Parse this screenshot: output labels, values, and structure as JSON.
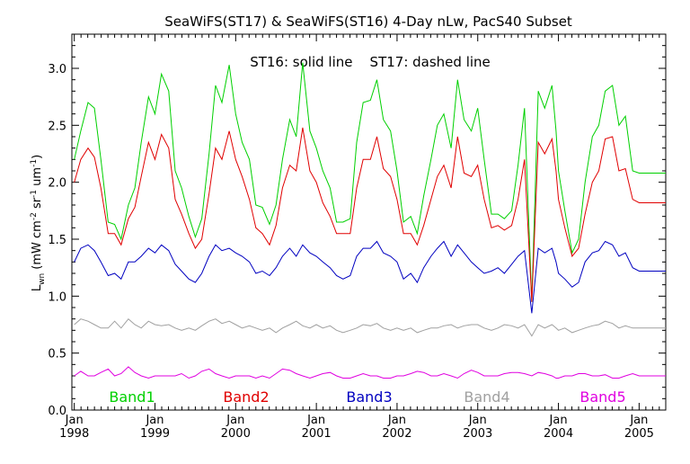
{
  "chart_data": {
    "type": "line",
    "title": "SeaWiFS(ST17) & SeaWiFS(ST16) 4-Day nLw, PacS40 Subset",
    "annotation": "ST16: solid line    ST17: dashed line",
    "ylabel_main": "L",
    "ylabel_sub": "wn",
    "ylabel_rest": " (mW cm",
    "ylabel_exp1": "-2",
    "ylabel_mid": " sr",
    "ylabel_exp2": "-1",
    "ylabel_um": " um",
    "ylabel_exp3": "-1",
    "ylabel_close": ")",
    "ylim": [
      0.0,
      3.3
    ],
    "yticks": [
      0.0,
      0.5,
      1.0,
      1.5,
      2.0,
      2.5,
      3.0
    ],
    "ytick_labels": [
      "0.0",
      "0.5",
      "1.0",
      "1.5",
      "2.0",
      "2.5",
      "3.0"
    ],
    "xlim": [
      1997.97,
      2005.33
    ],
    "xticks": [
      1998,
      1999,
      2000,
      2001,
      2002,
      2003,
      2004,
      2005
    ],
    "xtick_month_label": "Jan",
    "xtick_year_labels": [
      "1998",
      "1999",
      "2000",
      "2001",
      "2002",
      "2003",
      "2004",
      "2005"
    ],
    "grid": false,
    "legend_placement": "bottom",
    "series": [
      {
        "name": "Band1",
        "color": "#00d000",
        "x": [
          1998.0,
          1998.08,
          1998.17,
          1998.25,
          1998.33,
          1998.42,
          1998.5,
          1998.58,
          1998.67,
          1998.75,
          1998.83,
          1998.92,
          1999.0,
          1999.08,
          1999.17,
          1999.25,
          1999.33,
          1999.42,
          1999.5,
          1999.58,
          1999.67,
          1999.75,
          1999.83,
          1999.92,
          2000.0,
          2000.08,
          2000.17,
          2000.25,
          2000.33,
          2000.42,
          2000.5,
          2000.58,
          2000.67,
          2000.75,
          2000.83,
          2000.92,
          2001.0,
          2001.08,
          2001.17,
          2001.25,
          2001.33,
          2001.42,
          2001.5,
          2001.58,
          2001.67,
          2001.75,
          2001.83,
          2001.92,
          2002.0,
          2002.08,
          2002.17,
          2002.25,
          2002.33,
          2002.42,
          2002.5,
          2002.58,
          2002.67,
          2002.75,
          2002.83,
          2002.92,
          2003.0,
          2003.08,
          2003.17,
          2003.25,
          2003.33,
          2003.42,
          2003.5,
          2003.58,
          2003.67,
          2003.75,
          2003.83,
          2003.92,
          2003.97,
          2004.0,
          2004.08,
          2004.17,
          2004.25,
          2004.33,
          2004.42,
          2004.5,
          2004.58,
          2004.67,
          2004.75,
          2004.83,
          2004.92,
          2005.0,
          2005.08,
          2005.17,
          2005.25,
          2005.33
        ],
        "y": [
          2.2,
          2.45,
          2.7,
          2.65,
          2.2,
          1.65,
          1.63,
          1.5,
          1.8,
          1.95,
          2.35,
          2.75,
          2.6,
          2.95,
          2.8,
          2.1,
          1.95,
          1.7,
          1.52,
          1.68,
          2.25,
          2.85,
          2.7,
          3.03,
          2.6,
          2.35,
          2.2,
          1.8,
          1.78,
          1.63,
          1.8,
          2.2,
          2.55,
          2.4,
          3.05,
          2.45,
          2.3,
          2.1,
          1.95,
          1.65,
          1.65,
          1.68,
          2.35,
          2.7,
          2.72,
          2.9,
          2.55,
          2.45,
          2.1,
          1.65,
          1.7,
          1.55,
          1.88,
          2.2,
          2.5,
          2.6,
          2.3,
          2.9,
          2.55,
          2.45,
          2.65,
          2.2,
          1.72,
          1.72,
          1.68,
          1.75,
          2.15,
          2.65,
          0.95,
          2.8,
          2.65,
          2.85,
          2.45,
          2.1,
          1.75,
          1.38,
          1.5,
          2.0,
          2.4,
          2.5,
          2.8,
          2.85,
          2.5,
          2.58,
          2.1,
          2.08,
          2.08,
          2.08,
          2.08,
          2.08
        ]
      },
      {
        "name": "Band2",
        "color": "#e00000",
        "x": [
          1998.0,
          1998.08,
          1998.17,
          1998.25,
          1998.33,
          1998.42,
          1998.5,
          1998.58,
          1998.67,
          1998.75,
          1998.83,
          1998.92,
          1999.0,
          1999.08,
          1999.17,
          1999.25,
          1999.33,
          1999.42,
          1999.5,
          1999.58,
          1999.67,
          1999.75,
          1999.83,
          1999.92,
          2000.0,
          2000.08,
          2000.17,
          2000.25,
          2000.33,
          2000.42,
          2000.5,
          2000.58,
          2000.67,
          2000.75,
          2000.83,
          2000.92,
          2001.0,
          2001.08,
          2001.17,
          2001.25,
          2001.33,
          2001.42,
          2001.5,
          2001.58,
          2001.67,
          2001.75,
          2001.83,
          2001.92,
          2002.0,
          2002.08,
          2002.17,
          2002.25,
          2002.33,
          2002.42,
          2002.5,
          2002.58,
          2002.67,
          2002.75,
          2002.83,
          2002.92,
          2003.0,
          2003.08,
          2003.17,
          2003.25,
          2003.33,
          2003.42,
          2003.5,
          2003.58,
          2003.67,
          2003.75,
          2003.83,
          2003.92,
          2003.97,
          2004.0,
          2004.08,
          2004.17,
          2004.25,
          2004.33,
          2004.42,
          2004.5,
          2004.58,
          2004.67,
          2004.75,
          2004.83,
          2004.92,
          2005.0,
          2005.08,
          2005.17,
          2005.25,
          2005.33
        ],
        "y": [
          2.0,
          2.2,
          2.3,
          2.22,
          1.95,
          1.55,
          1.55,
          1.45,
          1.68,
          1.78,
          2.05,
          2.35,
          2.2,
          2.42,
          2.3,
          1.85,
          1.72,
          1.55,
          1.42,
          1.5,
          1.9,
          2.3,
          2.2,
          2.45,
          2.2,
          2.05,
          1.85,
          1.6,
          1.55,
          1.45,
          1.62,
          1.95,
          2.15,
          2.1,
          2.48,
          2.1,
          2.0,
          1.82,
          1.7,
          1.55,
          1.55,
          1.55,
          1.95,
          2.2,
          2.2,
          2.4,
          2.12,
          2.05,
          1.85,
          1.55,
          1.55,
          1.45,
          1.62,
          1.85,
          2.05,
          2.15,
          1.95,
          2.4,
          2.08,
          2.05,
          2.15,
          1.85,
          1.6,
          1.62,
          1.58,
          1.62,
          1.85,
          2.2,
          0.95,
          2.35,
          2.25,
          2.38,
          2.1,
          1.85,
          1.6,
          1.35,
          1.42,
          1.72,
          2.0,
          2.1,
          2.38,
          2.4,
          2.1,
          2.12,
          1.85,
          1.82,
          1.82,
          1.82,
          1.82,
          1.82
        ]
      },
      {
        "name": "Band3",
        "color": "#0000c0",
        "x": [
          1998.0,
          1998.08,
          1998.17,
          1998.25,
          1998.33,
          1998.42,
          1998.5,
          1998.58,
          1998.67,
          1998.75,
          1998.83,
          1998.92,
          1999.0,
          1999.08,
          1999.17,
          1999.25,
          1999.33,
          1999.42,
          1999.5,
          1999.58,
          1999.67,
          1999.75,
          1999.83,
          1999.92,
          2000.0,
          2000.08,
          2000.17,
          2000.25,
          2000.33,
          2000.42,
          2000.5,
          2000.58,
          2000.67,
          2000.75,
          2000.83,
          2000.92,
          2001.0,
          2001.08,
          2001.17,
          2001.25,
          2001.33,
          2001.42,
          2001.5,
          2001.58,
          2001.67,
          2001.75,
          2001.83,
          2001.92,
          2002.0,
          2002.08,
          2002.17,
          2002.25,
          2002.33,
          2002.42,
          2002.5,
          2002.58,
          2002.67,
          2002.75,
          2002.83,
          2002.92,
          2003.0,
          2003.08,
          2003.17,
          2003.25,
          2003.33,
          2003.42,
          2003.5,
          2003.58,
          2003.67,
          2003.75,
          2003.83,
          2003.92,
          2003.97,
          2004.0,
          2004.08,
          2004.17,
          2004.25,
          2004.33,
          2004.42,
          2004.5,
          2004.58,
          2004.67,
          2004.75,
          2004.83,
          2004.92,
          2005.0,
          2005.08,
          2005.17,
          2005.25,
          2005.33
        ],
        "y": [
          1.3,
          1.42,
          1.45,
          1.4,
          1.3,
          1.18,
          1.2,
          1.15,
          1.3,
          1.3,
          1.35,
          1.42,
          1.38,
          1.45,
          1.4,
          1.28,
          1.22,
          1.15,
          1.12,
          1.2,
          1.35,
          1.45,
          1.4,
          1.42,
          1.38,
          1.35,
          1.3,
          1.2,
          1.22,
          1.18,
          1.25,
          1.35,
          1.42,
          1.35,
          1.45,
          1.38,
          1.35,
          1.3,
          1.25,
          1.18,
          1.15,
          1.18,
          1.35,
          1.42,
          1.42,
          1.48,
          1.38,
          1.35,
          1.3,
          1.15,
          1.2,
          1.12,
          1.25,
          1.35,
          1.42,
          1.48,
          1.35,
          1.45,
          1.38,
          1.3,
          1.25,
          1.2,
          1.22,
          1.25,
          1.2,
          1.28,
          1.35,
          1.4,
          0.85,
          1.42,
          1.38,
          1.42,
          1.3,
          1.2,
          1.15,
          1.08,
          1.12,
          1.3,
          1.38,
          1.4,
          1.48,
          1.45,
          1.35,
          1.38,
          1.25,
          1.22,
          1.22,
          1.22,
          1.22,
          1.22
        ]
      },
      {
        "name": "Band4",
        "color": "#a0a0a0",
        "x": [
          1998.0,
          1998.08,
          1998.17,
          1998.25,
          1998.33,
          1998.42,
          1998.5,
          1998.58,
          1998.67,
          1998.75,
          1998.83,
          1998.92,
          1999.0,
          1999.08,
          1999.17,
          1999.25,
          1999.33,
          1999.42,
          1999.5,
          1999.58,
          1999.67,
          1999.75,
          1999.83,
          1999.92,
          2000.0,
          2000.08,
          2000.17,
          2000.25,
          2000.33,
          2000.42,
          2000.5,
          2000.58,
          2000.67,
          2000.75,
          2000.83,
          2000.92,
          2001.0,
          2001.08,
          2001.17,
          2001.25,
          2001.33,
          2001.42,
          2001.5,
          2001.58,
          2001.67,
          2001.75,
          2001.83,
          2001.92,
          2002.0,
          2002.08,
          2002.17,
          2002.25,
          2002.33,
          2002.42,
          2002.5,
          2002.58,
          2002.67,
          2002.75,
          2002.83,
          2002.92,
          2003.0,
          2003.08,
          2003.17,
          2003.25,
          2003.33,
          2003.42,
          2003.5,
          2003.58,
          2003.67,
          2003.75,
          2003.83,
          2003.92,
          2003.97,
          2004.0,
          2004.08,
          2004.17,
          2004.25,
          2004.33,
          2004.42,
          2004.5,
          2004.58,
          2004.67,
          2004.75,
          2004.83,
          2004.92,
          2005.0,
          2005.08,
          2005.17,
          2005.25,
          2005.33
        ],
        "y": [
          0.75,
          0.8,
          0.78,
          0.75,
          0.72,
          0.72,
          0.78,
          0.72,
          0.8,
          0.75,
          0.72,
          0.78,
          0.75,
          0.74,
          0.75,
          0.72,
          0.7,
          0.72,
          0.7,
          0.74,
          0.78,
          0.8,
          0.76,
          0.78,
          0.75,
          0.72,
          0.74,
          0.72,
          0.7,
          0.72,
          0.68,
          0.72,
          0.75,
          0.78,
          0.74,
          0.72,
          0.75,
          0.72,
          0.74,
          0.7,
          0.68,
          0.7,
          0.72,
          0.75,
          0.74,
          0.76,
          0.72,
          0.7,
          0.72,
          0.7,
          0.72,
          0.68,
          0.7,
          0.72,
          0.72,
          0.74,
          0.75,
          0.72,
          0.74,
          0.75,
          0.75,
          0.72,
          0.7,
          0.72,
          0.75,
          0.74,
          0.72,
          0.75,
          0.65,
          0.75,
          0.72,
          0.75,
          0.72,
          0.7,
          0.72,
          0.68,
          0.7,
          0.72,
          0.74,
          0.75,
          0.78,
          0.76,
          0.72,
          0.74,
          0.72,
          0.72,
          0.72,
          0.72,
          0.72,
          0.72
        ]
      },
      {
        "name": "Band5",
        "color": "#e000e0",
        "x": [
          1998.0,
          1998.08,
          1998.17,
          1998.25,
          1998.33,
          1998.42,
          1998.5,
          1998.58,
          1998.67,
          1998.75,
          1998.83,
          1998.92,
          1999.0,
          1999.08,
          1999.17,
          1999.25,
          1999.33,
          1999.42,
          1999.5,
          1999.58,
          1999.67,
          1999.75,
          1999.83,
          1999.92,
          2000.0,
          2000.08,
          2000.17,
          2000.25,
          2000.33,
          2000.42,
          2000.5,
          2000.58,
          2000.67,
          2000.75,
          2000.83,
          2000.92,
          2001.0,
          2001.08,
          2001.17,
          2001.25,
          2001.33,
          2001.42,
          2001.5,
          2001.58,
          2001.67,
          2001.75,
          2001.83,
          2001.92,
          2002.0,
          2002.08,
          2002.17,
          2002.25,
          2002.33,
          2002.42,
          2002.5,
          2002.58,
          2002.67,
          2002.75,
          2002.83,
          2002.92,
          2003.0,
          2003.08,
          2003.17,
          2003.25,
          2003.33,
          2003.42,
          2003.5,
          2003.58,
          2003.67,
          2003.75,
          2003.83,
          2003.92,
          2003.97,
          2004.0,
          2004.08,
          2004.17,
          2004.25,
          2004.33,
          2004.42,
          2004.5,
          2004.58,
          2004.67,
          2004.75,
          2004.83,
          2004.92,
          2005.0,
          2005.08,
          2005.17,
          2005.25,
          2005.33
        ],
        "y": [
          0.3,
          0.34,
          0.3,
          0.3,
          0.33,
          0.36,
          0.3,
          0.32,
          0.38,
          0.33,
          0.3,
          0.28,
          0.3,
          0.3,
          0.3,
          0.3,
          0.32,
          0.28,
          0.3,
          0.34,
          0.36,
          0.32,
          0.3,
          0.28,
          0.3,
          0.3,
          0.3,
          0.28,
          0.3,
          0.28,
          0.32,
          0.36,
          0.35,
          0.32,
          0.3,
          0.28,
          0.3,
          0.32,
          0.33,
          0.3,
          0.28,
          0.28,
          0.3,
          0.32,
          0.3,
          0.3,
          0.28,
          0.28,
          0.3,
          0.3,
          0.32,
          0.34,
          0.33,
          0.3,
          0.3,
          0.32,
          0.3,
          0.28,
          0.32,
          0.35,
          0.33,
          0.3,
          0.3,
          0.3,
          0.32,
          0.33,
          0.33,
          0.32,
          0.3,
          0.33,
          0.32,
          0.3,
          0.28,
          0.28,
          0.3,
          0.3,
          0.32,
          0.32,
          0.3,
          0.3,
          0.31,
          0.28,
          0.28,
          0.3,
          0.32,
          0.3,
          0.3,
          0.3,
          0.3,
          0.3
        ]
      }
    ]
  }
}
